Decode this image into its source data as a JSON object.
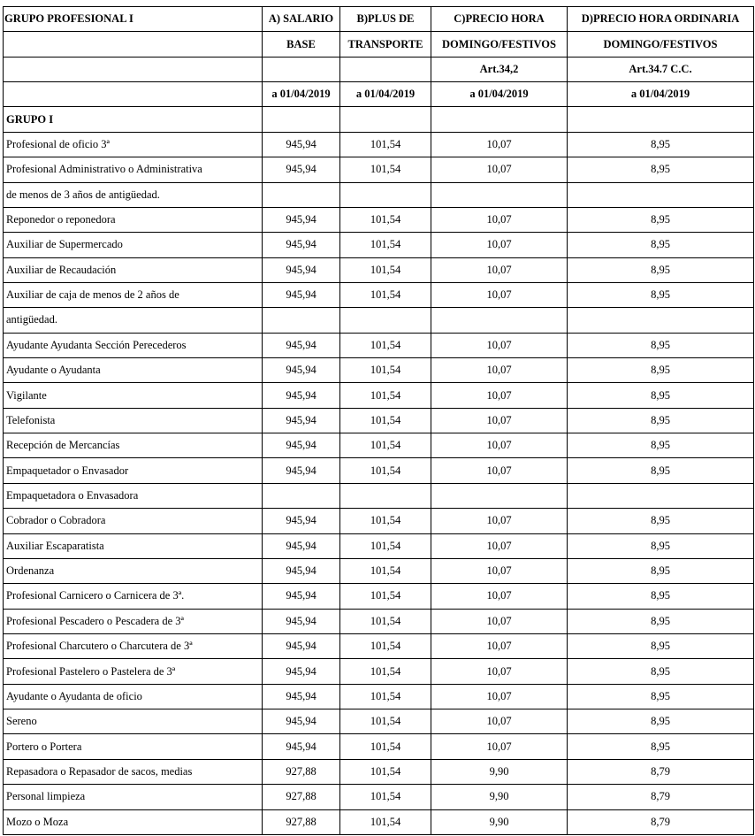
{
  "table": {
    "header": [
      [
        "GRUPO PROFESIONAL I",
        "A) SALARIO",
        "B)PLUS DE",
        "C)PRECIO HORA",
        "D)PRECIO HORA ORDINARIA"
      ],
      [
        null,
        "BASE",
        "TRANSPORTE",
        "DOMINGO/FESTIVOS",
        "DOMINGO/FESTIVOS"
      ],
      [
        null,
        null,
        null,
        "Art.34,2",
        "Art.34.7 C.C."
      ],
      [
        null,
        "a 01/04/2019",
        "a 01/04/2019",
        "a 01/04/2019",
        "a 01/04/2019"
      ]
    ],
    "group": "GRUPO I",
    "rows": [
      [
        "Profesional de oficio 3ª",
        "945,94",
        "101,54",
        "10,07",
        "8,95"
      ],
      [
        "Profesional Administrativo o Administrativa",
        "945,94",
        "101,54",
        "10,07",
        "8,95"
      ],
      [
        "de menos de 3 años de antigüedad.",
        null,
        null,
        null,
        null
      ],
      [
        "Reponedor o reponedora",
        "945,94",
        "101,54",
        "10,07",
        "8,95"
      ],
      [
        "Auxiliar de Supermercado",
        "945,94",
        "101,54",
        "10,07",
        "8,95"
      ],
      [
        "Auxiliar de Recaudación",
        "945,94",
        "101,54",
        "10,07",
        "8,95"
      ],
      [
        "Auxiliar de caja de menos de 2 años de",
        "945,94",
        "101,54",
        "10,07",
        "8,95"
      ],
      [
        "antigüedad.",
        null,
        null,
        null,
        null
      ],
      [
        "Ayudante Ayudanta Sección Perecederos",
        "945,94",
        "101,54",
        "10,07",
        "8,95"
      ],
      [
        "Ayudante o Ayudanta",
        "945,94",
        "101,54",
        "10,07",
        "8,95"
      ],
      [
        "Vigilante",
        "945,94",
        "101,54",
        "10,07",
        "8,95"
      ],
      [
        "Telefonista",
        "945,94",
        "101,54",
        "10,07",
        "8,95"
      ],
      [
        "Recepción de Mercancías",
        "945,94",
        "101,54",
        "10,07",
        "8,95"
      ],
      [
        "Empaquetador o Envasador",
        "945,94",
        "101,54",
        "10,07",
        "8,95"
      ],
      [
        "Empaquetadora o Envasadora",
        null,
        null,
        null,
        null
      ],
      [
        "Cobrador o Cobradora",
        "945,94",
        "101,54",
        "10,07",
        "8,95"
      ],
      [
        "Auxiliar Escaparatista",
        "945,94",
        "101,54",
        "10,07",
        "8,95"
      ],
      [
        "Ordenanza",
        "945,94",
        "101,54",
        "10,07",
        "8,95"
      ],
      [
        "Profesional Carnicero o Carnicera de 3ª.",
        "945,94",
        "101,54",
        "10,07",
        "8,95"
      ],
      [
        "Profesional Pescadero o Pescadera de 3ª",
        "945,94",
        "101,54",
        "10,07",
        "8,95"
      ],
      [
        "Profesional Charcutero o Charcutera de 3ª",
        "945,94",
        "101,54",
        "10,07",
        "8,95"
      ],
      [
        "Profesional Pastelero o Pastelera de 3ª",
        "945,94",
        "101,54",
        "10,07",
        "8,95"
      ],
      [
        "Ayudante o Ayudanta de oficio",
        "945,94",
        "101,54",
        "10,07",
        "8,95"
      ],
      [
        "Sereno",
        "945,94",
        "101,54",
        "10,07",
        "8,95"
      ],
      [
        "Portero o Portera",
        "945,94",
        "101,54",
        "10,07",
        "8,95"
      ],
      [
        "Repasadora o Repasador de sacos, medias",
        "927,88",
        "101,54",
        "9,90",
        "8,79"
      ],
      [
        "Personal limpieza",
        "927,88",
        "101,54",
        "9,90",
        "8,79"
      ],
      [
        "Mozo o Moza",
        "927,88",
        "101,54",
        "9,90",
        "8,79"
      ]
    ]
  }
}
